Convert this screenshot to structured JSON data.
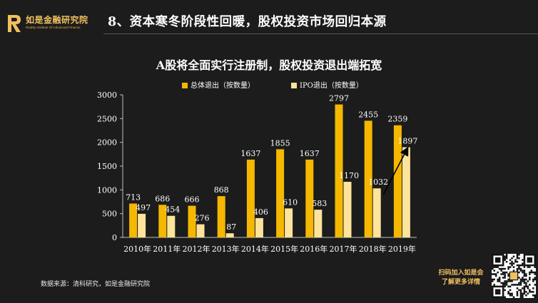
{
  "logo": {
    "name": "如是金融研究院",
    "sub": "Reality Institute Of Advanced Finance",
    "mark": "R"
  },
  "heading": "8、资本寒冬阶段性回暖，股权投资市场回归本源",
  "colors": {
    "total": "#f5b700",
    "ipo": "#fde49a",
    "background": "#1c1c1c",
    "accent": "#f0c060"
  },
  "chart_data": {
    "type": "bar",
    "title": "A股将全面实行注册制，股权投资退出端拓宽",
    "categories": [
      "2010年",
      "2011年",
      "2012年",
      "2013年",
      "2014年",
      "2015年",
      "2016年",
      "2017年",
      "2018年",
      "2019年"
    ],
    "series": [
      {
        "name": "总体退出（按数量）",
        "values": [
          713,
          686,
          666,
          868,
          1637,
          1855,
          1637,
          2797,
          2455,
          2359
        ]
      },
      {
        "name": "IPO退出（按数量）",
        "values": [
          497,
          454,
          276,
          87,
          406,
          610,
          583,
          1170,
          1032,
          1897
        ]
      }
    ],
    "yticks": [
      0,
      500,
      1000,
      1500,
      2000,
      2500,
      3000
    ],
    "ylim": [
      0,
      3000
    ],
    "xlabel": "",
    "ylabel": "",
    "annotations": [
      {
        "type": "arrow",
        "from": {
          "category": "2018年",
          "value": 900
        },
        "to": {
          "category": "2019年",
          "value": 1870
        }
      }
    ]
  },
  "source": "数据来源：清科研究，如是金融研究院",
  "qr_caption": [
    "扫码加入如是会",
    "了解更多详情"
  ]
}
